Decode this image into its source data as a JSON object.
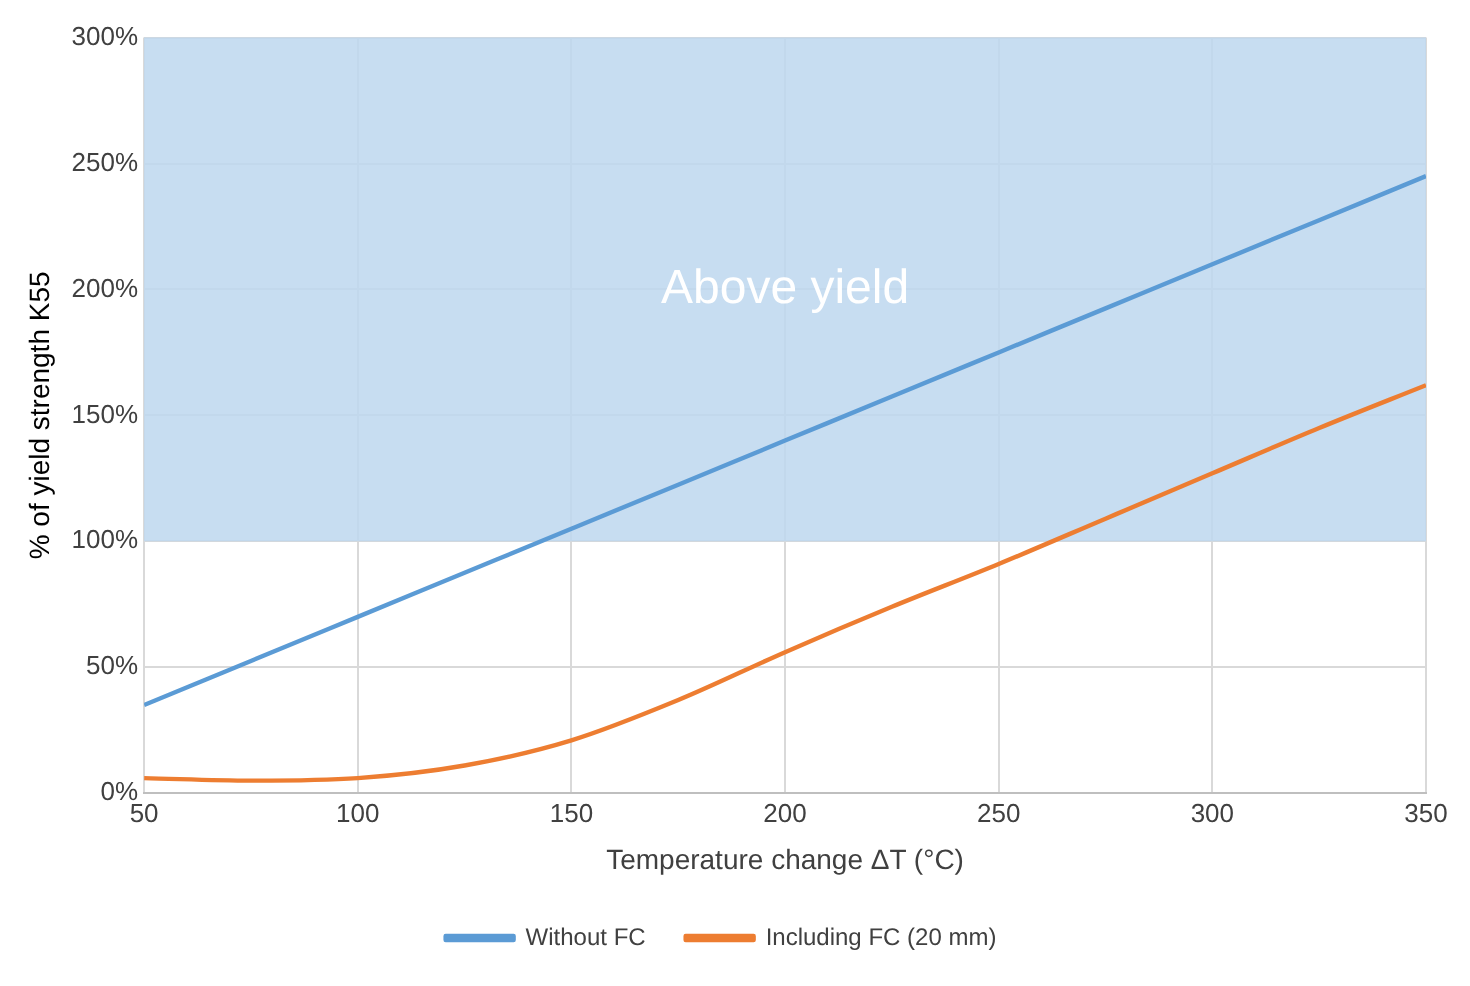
{
  "chart_data": {
    "type": "line",
    "xlabel": "Temperature change ΔT (°C)",
    "ylabel": "% of yield strength K55",
    "x": [
      50,
      75,
      100,
      125,
      150,
      175,
      200,
      225,
      250,
      275,
      300,
      325,
      350
    ],
    "series": [
      {
        "name": "Without FC",
        "color": "#5b9bd5",
        "values": [
          35,
          52.5,
          70,
          87.5,
          105,
          122.5,
          140,
          157.5,
          175,
          192.5,
          210,
          227.5,
          245
        ]
      },
      {
        "name": "Including FC (20 mm)",
        "color": "#ed7d31",
        "values": [
          6,
          5,
          6,
          11,
          21,
          37,
          56,
          74,
          91,
          109,
          127,
          145,
          162
        ]
      }
    ],
    "xlim": [
      50,
      350
    ],
    "xticks": [
      50,
      100,
      150,
      200,
      250,
      300,
      350
    ],
    "ylim": [
      0,
      300
    ],
    "yticks": [
      {
        "value": 0,
        "label": "0%"
      },
      {
        "value": 50,
        "label": "50%"
      },
      {
        "value": 100,
        "label": "100%"
      },
      {
        "value": 150,
        "label": "150%"
      },
      {
        "value": 200,
        "label": "200%"
      },
      {
        "value": 250,
        "label": "250%"
      },
      {
        "value": 300,
        "label": "300%"
      }
    ],
    "bands": [
      {
        "axis": "y",
        "from": 100,
        "to": 300,
        "label": "Above yield",
        "color": "#bdd7ee"
      }
    ],
    "grid": true,
    "legend": "bottom",
    "marker": "none",
    "line_style": "solid"
  }
}
